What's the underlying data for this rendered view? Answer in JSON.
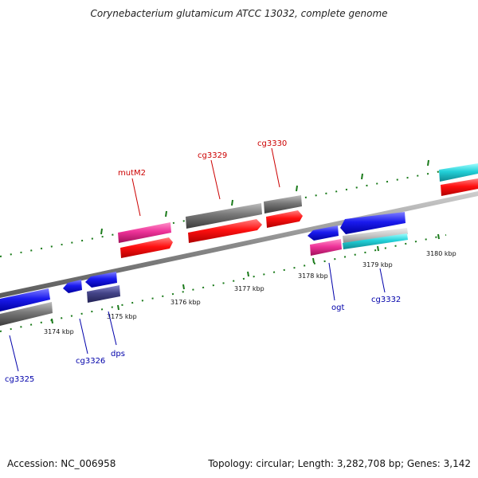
{
  "title": "Corynebacterium glutamicum ATCC 13032, complete genome",
  "footer": {
    "accession": "Accession: NC_006958",
    "stats": "Topology: circular; Length: 3,282,708 bp; Genes: 3,142"
  },
  "scale_labels": [
    "3174 kbp",
    "3175 kbp",
    "3176 kbp",
    "3177 kbp",
    "3178 kbp",
    "3179 kbp",
    "3180 kbp"
  ],
  "gene_labels": {
    "forward": [
      "mutM2",
      "cg3329",
      "cg3330"
    ],
    "reverse": [
      "cg3325",
      "cg3326",
      "dps",
      "ogt",
      "cg3332"
    ]
  },
  "colors": {
    "forward_label": "#cc0000",
    "reverse_label": "#0000aa",
    "tick": "#1a7a1a",
    "backbone": "#888888",
    "red": "#ff1a1a",
    "pink": "#ee3399",
    "blue": "#1a1aee",
    "gray": "#777777",
    "cyan": "#22d0d8",
    "slate": "#444488"
  }
}
